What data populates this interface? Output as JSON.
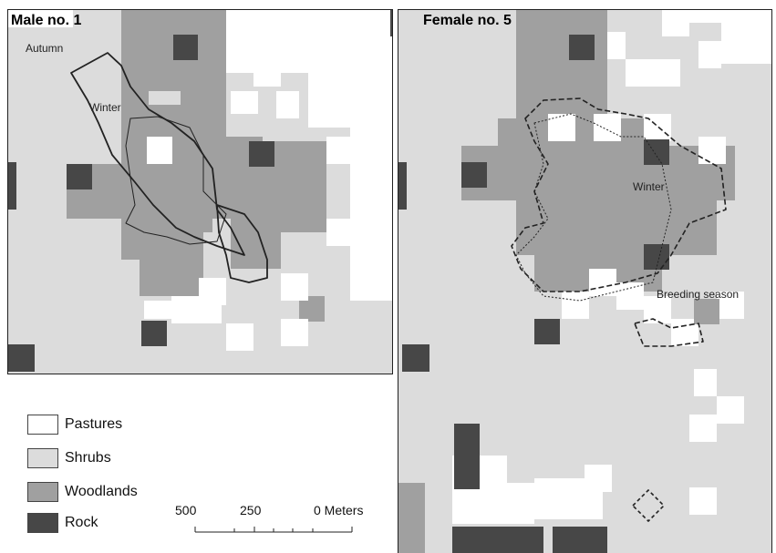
{
  "colors": {
    "pastures": "#ffffff",
    "shrubs": "#dcdcdc",
    "woodlands": "#a0a0a0",
    "rock": "#474747",
    "outline": "#222222"
  },
  "panels": [
    {
      "title": "Male no. 1",
      "labels": [
        "Autumn",
        "Winter"
      ]
    },
    {
      "title": "Female no. 5",
      "labels": [
        "Winter",
        "Breeding season"
      ]
    }
  ],
  "legend": [
    {
      "label": "Pastures",
      "class": "pastures"
    },
    {
      "label": "Shrubs",
      "class": "shrubs"
    },
    {
      "label": "Woodlands",
      "class": "woodlands"
    },
    {
      "label": "Rock",
      "class": "rock"
    }
  ],
  "scale_bar": {
    "ticks": [
      "500",
      "250",
      "0 Meters"
    ]
  }
}
